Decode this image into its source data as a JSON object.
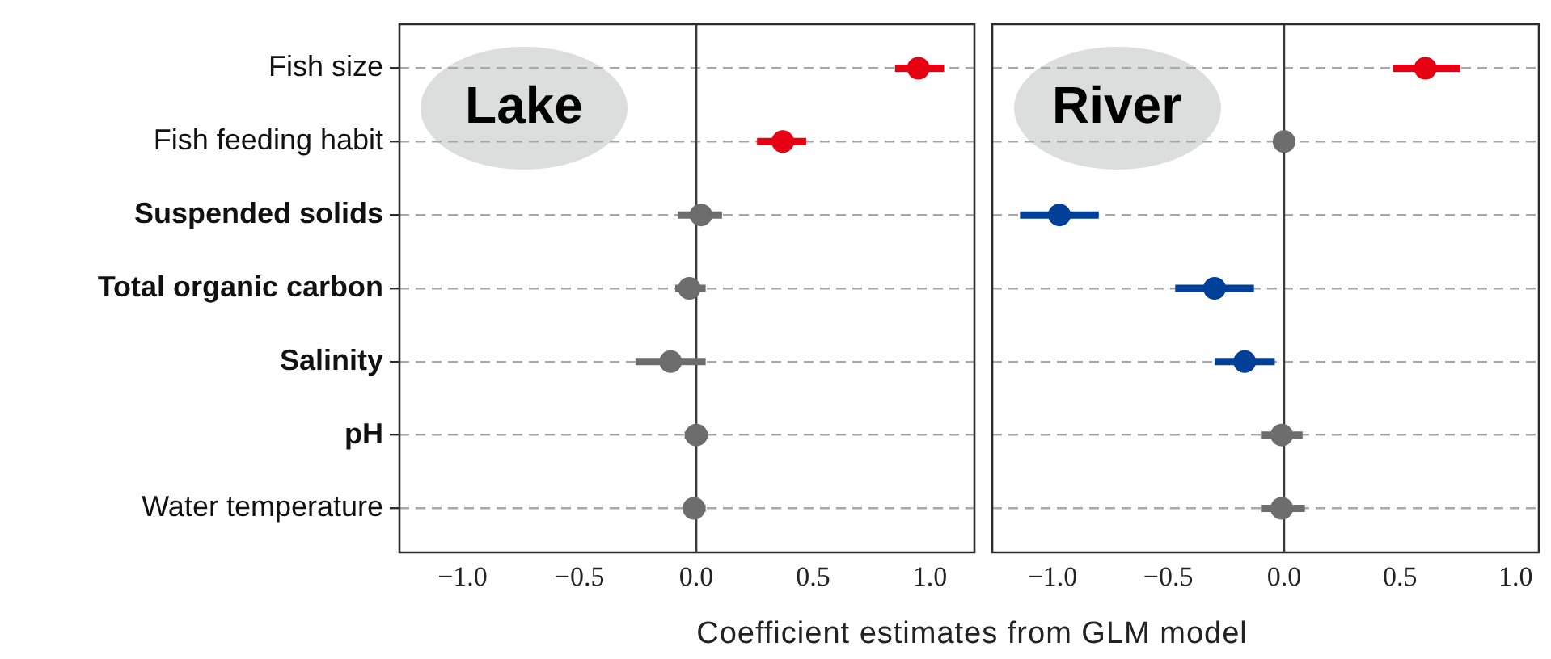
{
  "chart_data": [
    {
      "type": "scatter",
      "orientation": "horizontal",
      "categories": [
        "Fish size",
        "Fish feeding habit",
        "Suspended solids",
        "Total organic carbon",
        "Salinity",
        "pH",
        "Water temperature"
      ],
      "values": [
        0.95,
        0.37,
        0.02,
        -0.03,
        -0.11,
        0.0,
        -0.01
      ],
      "errors": [
        [
          0.85,
          1.06
        ],
        [
          0.26,
          0.47
        ],
        [
          -0.08,
          0.11
        ],
        [
          -0.09,
          0.04
        ],
        [
          -0.26,
          0.04
        ],
        [
          -0.05,
          0.05
        ],
        [
          -0.05,
          0.04
        ]
      ],
      "colors": [
        "#e60012",
        "#e60012",
        "#6d6d6d",
        "#6d6d6d",
        "#6d6d6d",
        "#6d6d6d",
        "#6d6d6d"
      ],
      "xlim": [
        -1.27,
        1.19
      ],
      "xticks": [
        {
          "value": -1,
          "label": "−1.0"
        },
        {
          "value": -0.5,
          "label": "−0.5"
        },
        {
          "value": 0,
          "label": "0.0"
        },
        {
          "value": 0.5,
          "label": "0.5"
        },
        {
          "value": 1,
          "label": "1.0"
        }
      ],
      "xlabel": "Coefficient estimates from GLM model",
      "grid": "y",
      "marker": "circle",
      "ref_lines": [
        {
          "axis": "x",
          "value": 0
        }
      ],
      "annotations": [
        "Lake"
      ]
    },
    {
      "type": "scatter",
      "orientation": "horizontal",
      "categories": [
        null,
        null,
        null,
        null,
        null,
        null,
        null
      ],
      "values": [
        0.61,
        0.0,
        -0.97,
        -0.3,
        -0.17,
        -0.01,
        -0.01
      ],
      "errors": [
        [
          0.47,
          0.76
        ],
        null,
        [
          -1.14,
          -0.8
        ],
        [
          -0.47,
          -0.13
        ],
        [
          -0.3,
          -0.04
        ],
        [
          -0.1,
          0.08
        ],
        [
          -0.1,
          0.09
        ]
      ],
      "colors": [
        "#e60012",
        "#6d6d6d",
        "#004098",
        "#004098",
        "#004098",
        "#6d6d6d",
        "#6d6d6d"
      ],
      "xlim": [
        -1.26,
        1.1
      ],
      "xticks": [
        {
          "value": -1,
          "label": "−1.0"
        },
        {
          "value": -0.5,
          "label": "−0.5"
        },
        {
          "value": 0,
          "label": "0.0"
        },
        {
          "value": 0.5,
          "label": "0.5"
        },
        {
          "value": 1,
          "label": "1.0"
        }
      ],
      "grid": "y",
      "marker": "circle",
      "tick_labels": "x",
      "ref_lines": [
        {
          "axis": "x",
          "value": 0
        }
      ],
      "annotations": [
        "River"
      ]
    }
  ]
}
